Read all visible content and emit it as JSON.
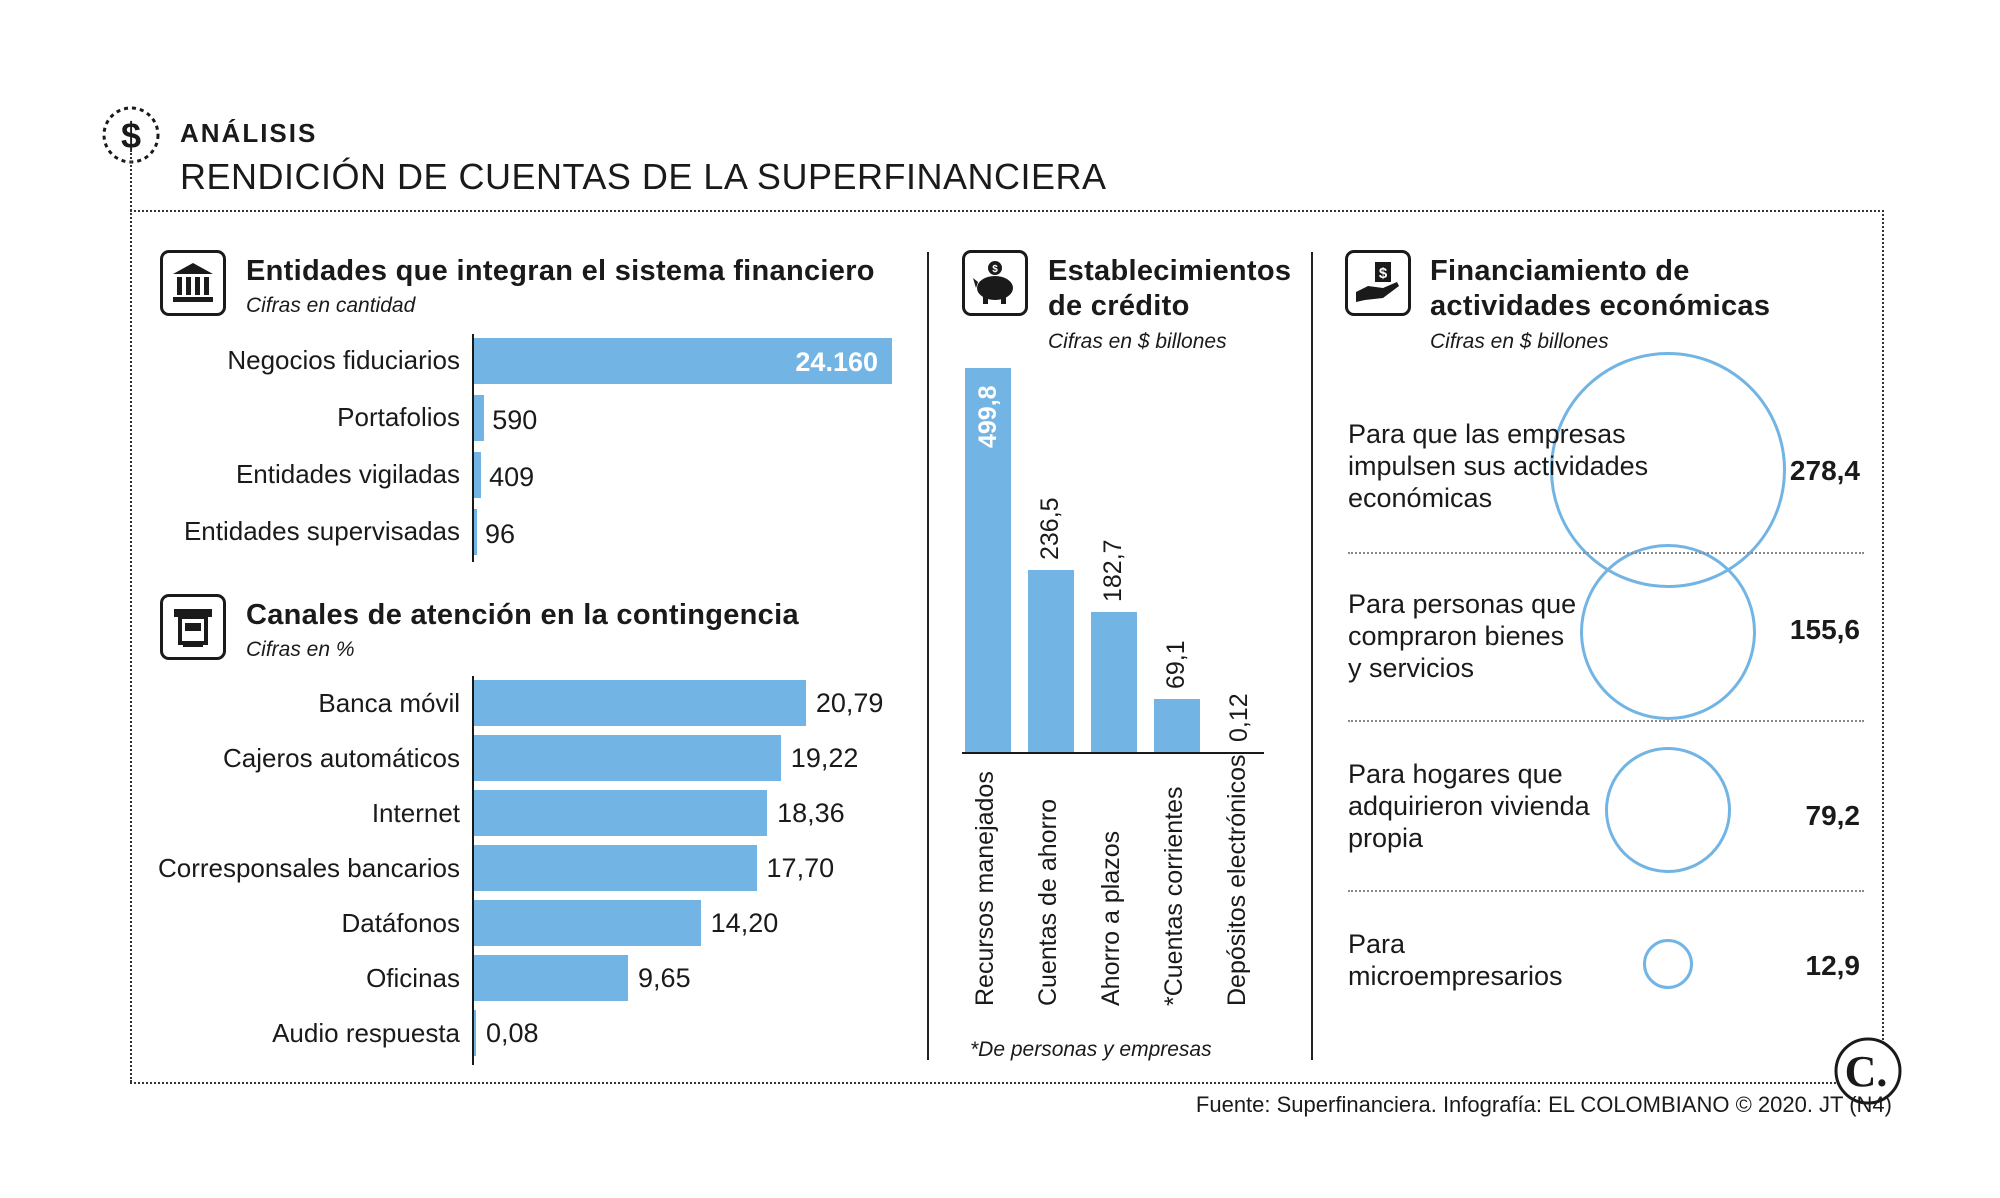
{
  "header": {
    "kicker": "ANÁLISIS",
    "title": "RENDICIÓN DE CUENTAS DE LA SUPERFINANCIERA",
    "icon": "dollar-icon"
  },
  "colors": {
    "bar": "#72b4e3",
    "circle": "#72b4e3",
    "text": "#1a1a1a"
  },
  "chart_data": [
    {
      "type": "bar",
      "orientation": "horizontal",
      "title": "Entidades que integran el sistema financiero",
      "subtitle": "Cifras en cantidad",
      "icon": "bank-icon",
      "categories": [
        "Negocios fiduciarios",
        "Portafolios",
        "Entidades vigiladas",
        "Entidades supervisadas"
      ],
      "values": [
        24160,
        590,
        409,
        96
      ],
      "value_labels": [
        "24.160",
        "590",
        "409",
        "96"
      ]
    },
    {
      "type": "bar",
      "orientation": "horizontal",
      "title": "Canales de atención en la contingencia",
      "subtitle": "Cifras en %",
      "icon": "atm-icon",
      "categories": [
        "Banca móvil",
        "Cajeros automáticos",
        "Internet",
        "Corresponsales bancarios",
        "Datáfonos",
        "Oficinas",
        "Audio respuesta"
      ],
      "values": [
        20.79,
        19.22,
        18.36,
        17.7,
        14.2,
        9.65,
        0.08
      ],
      "value_labels": [
        "20,79",
        "19,22",
        "18,36",
        "17,70",
        "14,20",
        "9,65",
        "0,08"
      ]
    },
    {
      "type": "bar",
      "orientation": "vertical",
      "title_lines": [
        "Establecimientos",
        "de crédito"
      ],
      "subtitle": "Cifras en $ billones",
      "icon": "piggy-bank-icon",
      "categories": [
        "Recursos manejados",
        "Cuentas de ahorro",
        "Ahorro a plazos",
        "*Cuentas corrientes",
        "Depósitos electrónicos"
      ],
      "values": [
        499.8,
        236.5,
        182.7,
        69.1,
        0.12
      ],
      "value_labels": [
        "499,8",
        "236,5",
        "182,7",
        "69,1",
        "0,12"
      ],
      "footnote": "*De personas y empresas"
    },
    {
      "type": "bubble",
      "title_lines": [
        "Financiamiento de",
        "actividades económicas"
      ],
      "subtitle": "Cifras en $ billones",
      "icon": "hand-money-icon",
      "items": [
        {
          "label_lines": [
            "Para que las empresas",
            "impulsen sus actividades",
            "económicas"
          ],
          "value": 278.4,
          "value_label": "278,4"
        },
        {
          "label_lines": [
            "Para personas que",
            "compraron bienes",
            "y servicios"
          ],
          "value": 155.6,
          "value_label": "155,6"
        },
        {
          "label_lines": [
            "Para hogares que",
            "adquirieron vivienda",
            "propia"
          ],
          "value": 79.2,
          "value_label": "79,2"
        },
        {
          "label_lines": [
            "Para",
            "microempresarios"
          ],
          "value": 12.9,
          "value_label": "12,9"
        }
      ]
    }
  ],
  "footer": {
    "source": "Fuente: Superfinanciera. Infografía: EL COLOMBIANO © 2020. JT (N4)",
    "logo": "C."
  }
}
